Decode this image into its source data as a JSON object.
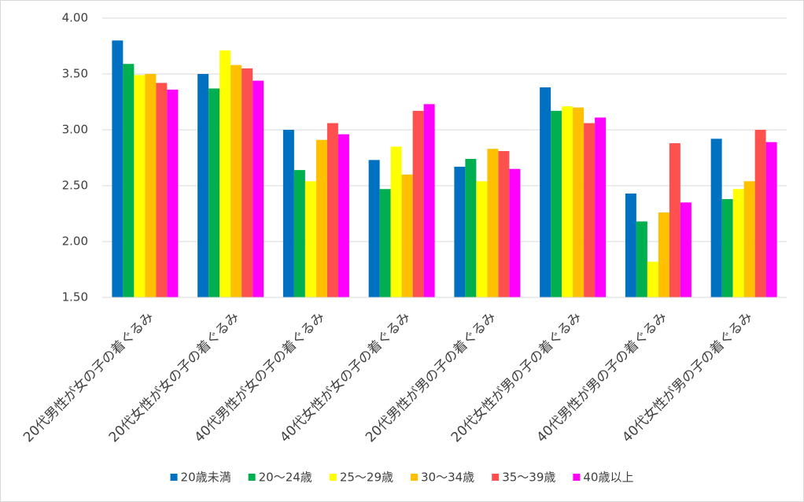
{
  "chart_data": {
    "type": "bar",
    "categories": [
      "20代男性が女の子の着ぐるみ",
      "20代女性が女の子の着ぐるみ",
      "40代男性が女の子の着ぐるみ",
      "40代女性が女の子の着ぐるみ",
      "20代男性が男の子の着ぐるみ",
      "20代女性が男の子の着ぐるみ",
      "40代男性が男の子の着ぐるみ",
      "40代女性が男の子の着ぐるみ"
    ],
    "series": [
      {
        "name": "20歳未満",
        "color": "#0070c0",
        "values": [
          3.8,
          3.5,
          3.0,
          2.73,
          2.67,
          3.38,
          2.43,
          2.92
        ]
      },
      {
        "name": "20～24歳",
        "color": "#00b050",
        "values": [
          3.59,
          3.37,
          2.64,
          2.47,
          2.74,
          3.17,
          2.18,
          2.38
        ]
      },
      {
        "name": "25～29歳",
        "color": "#ffff00",
        "values": [
          3.49,
          3.71,
          2.54,
          2.85,
          2.54,
          3.21,
          1.82,
          2.47
        ]
      },
      {
        "name": "30～34歳",
        "color": "#ffc000",
        "values": [
          3.5,
          3.58,
          2.91,
          2.6,
          2.83,
          3.2,
          2.26,
          2.54
        ]
      },
      {
        "name": "35～39歳",
        "color": "#ff5050",
        "values": [
          3.42,
          3.55,
          3.06,
          3.17,
          2.81,
          3.06,
          2.88,
          3.0
        ]
      },
      {
        "name": "40歳以上",
        "color": "#ff00ff",
        "values": [
          3.36,
          3.44,
          2.96,
          3.23,
          2.65,
          3.11,
          2.35,
          2.89
        ]
      }
    ],
    "ylim": [
      1.5,
      4.0
    ],
    "yticks": [
      {
        "value": 1.5,
        "label": "1.50"
      },
      {
        "value": 2.0,
        "label": "2.00"
      },
      {
        "value": 2.5,
        "label": "2.50"
      },
      {
        "value": 3.0,
        "label": "3.00"
      },
      {
        "value": 3.5,
        "label": "3.50"
      },
      {
        "value": 4.0,
        "label": "4.00"
      }
    ],
    "grid": true,
    "legend": "bottom"
  }
}
